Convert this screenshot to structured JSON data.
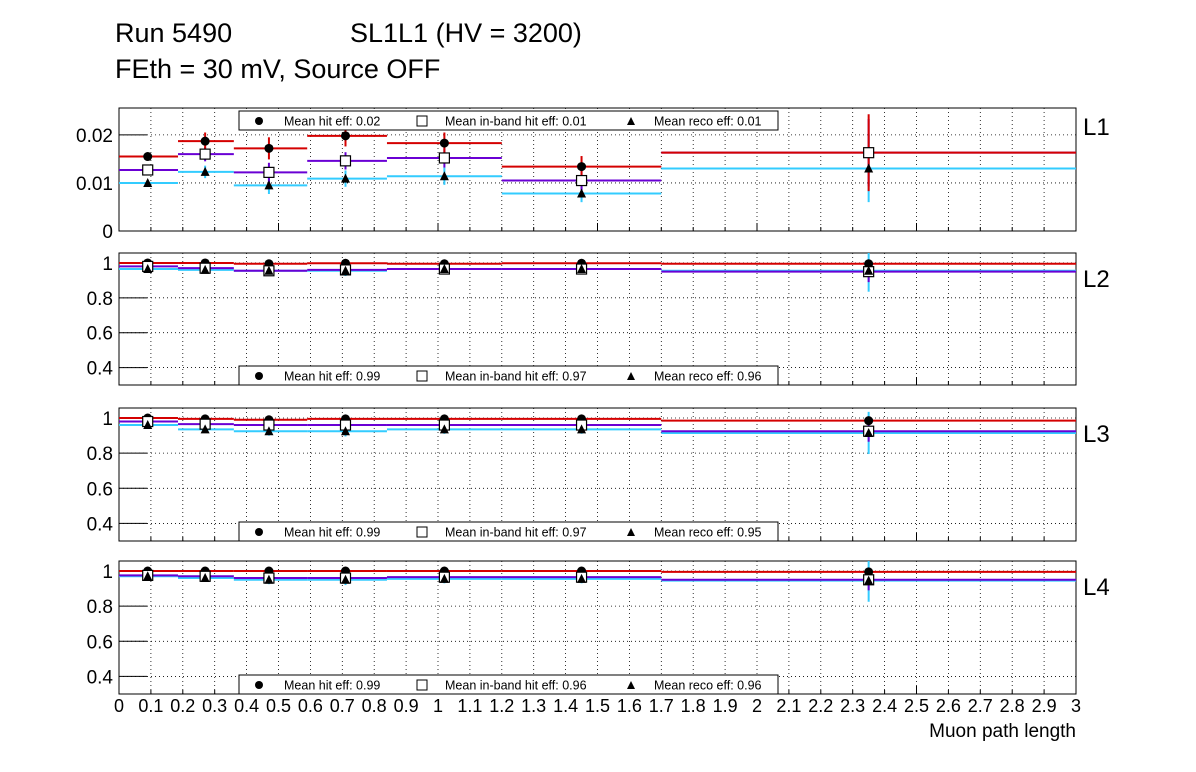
{
  "title_line1_left": "Run 5490",
  "title_line1_right": "SL1L1 (HV = 3200)",
  "title_line2": "FEth = 30 mV, Source OFF",
  "colors": {
    "hit": "#d40000",
    "inband": "#6a00d4",
    "reco": "#33ccff",
    "marker": "#000000"
  },
  "chart_data": [
    {
      "type": "scatter",
      "label": "L1",
      "xlabel": "Muon path length",
      "xlim": [
        0,
        3
      ],
      "ylim": [
        0,
        0.0256
      ],
      "y_ticks": [
        "0",
        "0.01",
        "0.02"
      ],
      "y_tick_values": [
        0,
        0.01,
        0.02
      ],
      "bin_edges": [
        0,
        0.185,
        0.36,
        0.59,
        0.84,
        1.2,
        1.7,
        3
      ],
      "points_x": [
        0.09,
        0.27,
        0.47,
        0.71,
        1.02,
        1.45,
        2.35
      ],
      "legend": {
        "placement": "top",
        "entries": [
          "Mean hit  eff: 0.02",
          "Mean in-band hit eff: 0.01",
          "Mean reco eff: 0.01"
        ]
      },
      "series": [
        {
          "name": "hit",
          "values": [
            0.0155,
            0.0187,
            0.0172,
            0.0198,
            0.0183,
            0.0134,
            0.0163
          ],
          "err": [
            0.0007,
            0.0018,
            0.0023,
            0.0022,
            0.0022,
            0.0022,
            0.008
          ]
        },
        {
          "name": "inband",
          "values": [
            0.0127,
            0.016,
            0.0122,
            0.0146,
            0.0152,
            0.0105,
            0.0163
          ],
          "err": [
            0.0007,
            0.0015,
            0.002,
            0.0018,
            0.002,
            0.002,
            0.007
          ]
        },
        {
          "name": "reco",
          "values": [
            0.01,
            0.0123,
            0.0095,
            0.0109,
            0.0114,
            0.0078,
            0.013
          ],
          "err": [
            0.0006,
            0.0013,
            0.0018,
            0.0017,
            0.0018,
            0.0018,
            0.007
          ]
        }
      ]
    },
    {
      "type": "scatter",
      "label": "L2",
      "xlim": [
        0,
        3
      ],
      "ylim": [
        0.3,
        1.057
      ],
      "y_ticks": [
        "0.4",
        "0.6",
        "0.8",
        "1"
      ],
      "y_tick_values": [
        0.4,
        0.6,
        0.8,
        1.0
      ],
      "bin_edges": [
        0,
        0.185,
        0.36,
        0.59,
        0.84,
        1.2,
        1.7,
        3
      ],
      "points_x": [
        0.09,
        0.27,
        0.47,
        0.71,
        1.02,
        1.45,
        2.35
      ],
      "legend": {
        "placement": "bottom",
        "entries": [
          "Mean hit  eff: 0.99",
          "Mean in-band hit eff: 0.97",
          "Mean reco eff: 0.96"
        ]
      },
      "series": [
        {
          "name": "hit",
          "values": [
            1.0,
            1.0,
            0.995,
            0.998,
            0.995,
            0.998,
            0.995
          ],
          "err": [
            0.005,
            0.005,
            0.01,
            0.01,
            0.01,
            0.01,
            0.02
          ]
        },
        {
          "name": "inband",
          "values": [
            0.98,
            0.97,
            0.955,
            0.96,
            0.965,
            0.965,
            0.95
          ],
          "err": [
            0.01,
            0.015,
            0.02,
            0.02,
            0.02,
            0.02,
            0.06
          ]
        },
        {
          "name": "reco",
          "values": [
            0.965,
            0.96,
            0.955,
            0.955,
            0.965,
            0.965,
            0.955
          ],
          "err": [
            0.01,
            0.015,
            0.025,
            0.03,
            0.025,
            0.025,
            0.12
          ]
        }
      ]
    },
    {
      "type": "scatter",
      "label": "L3",
      "xlim": [
        0,
        3
      ],
      "ylim": [
        0.3,
        1.057
      ],
      "y_ticks": [
        "0.4",
        "0.6",
        "0.8",
        "1"
      ],
      "y_tick_values": [
        0.4,
        0.6,
        0.8,
        1.0
      ],
      "bin_edges": [
        0,
        0.185,
        0.36,
        0.59,
        0.84,
        1.2,
        1.7,
        3
      ],
      "points_x": [
        0.09,
        0.27,
        0.47,
        0.71,
        1.02,
        1.45,
        2.35
      ],
      "legend": {
        "placement": "bottom",
        "entries": [
          "Mean hit  eff: 0.99",
          "Mean in-band hit eff: 0.97",
          "Mean reco eff: 0.95"
        ]
      },
      "series": [
        {
          "name": "hit",
          "values": [
            1.0,
            0.995,
            0.99,
            0.995,
            0.995,
            0.995,
            0.985
          ],
          "err": [
            0.005,
            0.005,
            0.01,
            0.01,
            0.01,
            0.01,
            0.02
          ]
        },
        {
          "name": "inband",
          "values": [
            0.98,
            0.965,
            0.96,
            0.96,
            0.96,
            0.96,
            0.925
          ],
          "err": [
            0.01,
            0.015,
            0.02,
            0.02,
            0.02,
            0.02,
            0.06
          ]
        },
        {
          "name": "reco",
          "values": [
            0.96,
            0.935,
            0.925,
            0.925,
            0.935,
            0.935,
            0.915
          ],
          "err": [
            0.01,
            0.015,
            0.025,
            0.03,
            0.025,
            0.025,
            0.12
          ]
        }
      ]
    },
    {
      "type": "scatter",
      "label": "L4",
      "xlim": [
        0,
        3
      ],
      "ylim": [
        0.3,
        1.057
      ],
      "y_ticks": [
        "0.4",
        "0.6",
        "0.8",
        "1"
      ],
      "y_tick_values": [
        0.4,
        0.6,
        0.8,
        1.0
      ],
      "bin_edges": [
        0,
        0.185,
        0.36,
        0.59,
        0.84,
        1.2,
        1.7,
        3
      ],
      "points_x": [
        0.09,
        0.27,
        0.47,
        0.71,
        1.02,
        1.45,
        2.35
      ],
      "legend": {
        "placement": "bottom",
        "entries": [
          "Mean hit  eff: 0.99",
          "Mean in-band hit eff: 0.96",
          "Mean reco eff: 0.96"
        ]
      },
      "x_ticks": [
        "0",
        "0.1",
        "0.2",
        "0.3",
        "0.4",
        "0.5",
        "0.6",
        "0.7",
        "0.8",
        "0.9",
        "1",
        "1.1",
        "1.2",
        "1.3",
        "1.4",
        "1.5",
        "1.6",
        "1.7",
        "1.8",
        "1.9",
        "2",
        "2.1",
        "2.2",
        "2.3",
        "2.4",
        "2.5",
        "2.6",
        "2.7",
        "2.8",
        "2.9",
        "3"
      ],
      "series": [
        {
          "name": "hit",
          "values": [
            1.0,
            1.0,
            1.0,
            1.0,
            1.0,
            1.0,
            0.995
          ],
          "err": [
            0.005,
            0.005,
            0.01,
            0.01,
            0.01,
            0.01,
            0.02
          ]
        },
        {
          "name": "inband",
          "values": [
            0.975,
            0.97,
            0.96,
            0.96,
            0.965,
            0.965,
            0.95
          ],
          "err": [
            0.01,
            0.015,
            0.02,
            0.02,
            0.02,
            0.02,
            0.06
          ]
        },
        {
          "name": "reco",
          "values": [
            0.97,
            0.96,
            0.95,
            0.95,
            0.955,
            0.955,
            0.945
          ],
          "err": [
            0.01,
            0.015,
            0.025,
            0.03,
            0.025,
            0.025,
            0.12
          ]
        }
      ]
    }
  ]
}
